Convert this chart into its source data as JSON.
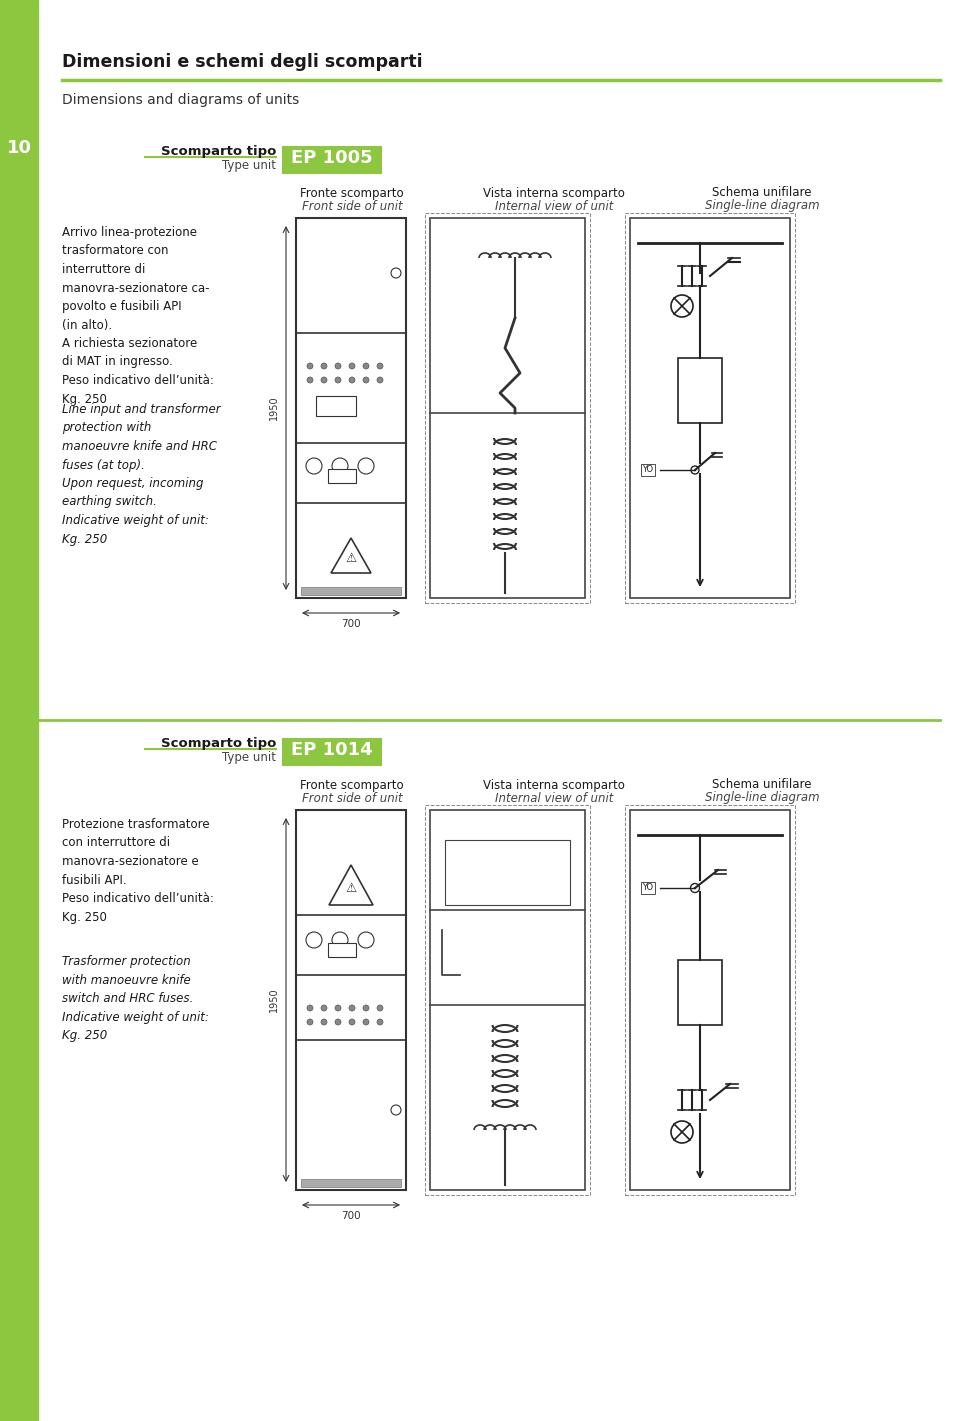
{
  "bg_color": "#ffffff",
  "accent_color": "#8dc63f",
  "sidebar_color": "#8dc63f",
  "title_it": "Dimensioni e schemi degli scomparti",
  "title_en": "Dimensions and diagrams of units",
  "page_number": "10",
  "unit1": {
    "type_label_it": "Scomparto tipo",
    "type_label_en": "Type unit",
    "type_code": "EP 1005",
    "desc_it": "Arrivo linea-protezione\ntrasformatore con\ninterruttore di\nmanovra-sezionatore ca-\npovolto e fusibili API\n(in alto).\nA richiesta sezionatore\ndi MAT in ingresso.\nPeso indicativo dell’unità:\nKg. 250",
    "desc_en": "Line input and transformer\nprotection with\nmanoeuvre knife and HRC\nfuses (at top).\nUpon request, incoming\nearthing switch.\nIndicative weight of unit:\nKg. 250",
    "dim_h": "1950",
    "dim_w": "700"
  },
  "unit2": {
    "type_label_it": "Scomparto tipo",
    "type_label_en": "Type unit",
    "type_code": "EP 1014",
    "desc_it": "Protezione trasformatore\ncon interruttore di\nmanovra-sezionatore e\nfusibili API.\nPeso indicativo dell’unità:\nKg. 250",
    "desc_en": "Trasformer protection\nwith manoeuvre knife\nswitch and HRC fuses.\nIndicative weight of unit:\nKg. 250",
    "dim_h": "1950",
    "dim_w": "700"
  },
  "col_headers_it": [
    "Fronte scomparto",
    "Vista interna scomparto",
    "Schema unifilare"
  ],
  "col_headers_en": [
    "Front side of unit",
    "Internal view of unit",
    "Single-line diagram"
  ]
}
